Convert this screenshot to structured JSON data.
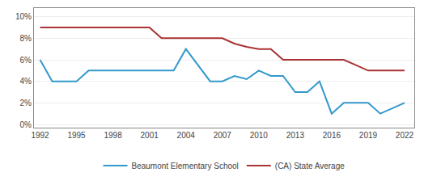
{
  "chart_data": {
    "type": "line",
    "x": [
      1992,
      1993,
      1994,
      1995,
      1996,
      1997,
      1998,
      1999,
      2000,
      2001,
      2002,
      2003,
      2004,
      2005,
      2006,
      2007,
      2008,
      2009,
      2010,
      2011,
      2012,
      2013,
      2014,
      2015,
      2016,
      2017,
      2018,
      2019,
      2020,
      2021,
      2022
    ],
    "series": [
      {
        "name": "Beaumont Elementary School",
        "color": "#3399cc",
        "values": [
          6.0,
          4.0,
          4.0,
          4.0,
          5.0,
          5.0,
          5.0,
          5.0,
          5.0,
          5.0,
          5.0,
          5.0,
          7.0,
          5.5,
          4.0,
          4.0,
          4.5,
          4.2,
          5.0,
          4.5,
          4.5,
          3.0,
          3.0,
          4.0,
          1.0,
          2.0,
          2.0,
          2.0,
          1.0,
          1.5,
          2.0
        ]
      },
      {
        "name": "(CA) State Average",
        "color": "#aa3333",
        "values": [
          9.0,
          9.0,
          9.0,
          9.0,
          9.0,
          9.0,
          9.0,
          9.0,
          9.0,
          9.0,
          8.0,
          8.0,
          8.0,
          8.0,
          8.0,
          8.0,
          7.5,
          7.2,
          7.0,
          7.0,
          6.0,
          6.0,
          6.0,
          6.0,
          6.0,
          6.0,
          5.5,
          5.0,
          5.0,
          5.0,
          5.0
        ]
      }
    ],
    "xlim": [
      1991.5,
      2022.8
    ],
    "xticks": [
      1992,
      1995,
      1998,
      2001,
      2004,
      2007,
      2010,
      2013,
      2016,
      2019,
      2022
    ],
    "ylim": [
      -0.3,
      10.8
    ],
    "yticks": [
      {
        "value": 0,
        "label": "0%"
      },
      {
        "value": 2,
        "label": "2%"
      },
      {
        "value": 4,
        "label": "4%"
      },
      {
        "value": 6,
        "label": "6%"
      },
      {
        "value": 8,
        "label": "8%"
      },
      {
        "value": 10,
        "label": "10%"
      }
    ],
    "grid": "y",
    "legend": "bottom"
  }
}
